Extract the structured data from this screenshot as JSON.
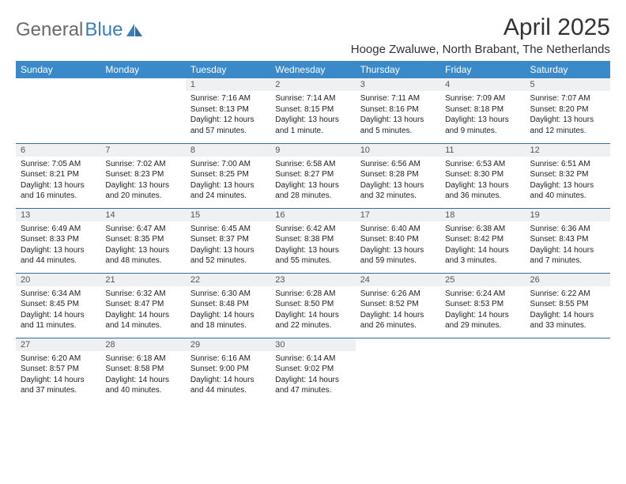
{
  "brand": {
    "part1": "General",
    "part2": "Blue"
  },
  "title": "April 2025",
  "location": "Hooge Zwaluwe, North Brabant, The Netherlands",
  "colors": {
    "header_bg": "#3a8ac9",
    "header_text": "#ffffff",
    "daynum_bg": "#eef0f2",
    "row_divider": "#2f6fa3",
    "brand_gray": "#6a6a6a",
    "brand_blue": "#3a7ebf",
    "text": "#222222",
    "background": "#ffffff"
  },
  "typography": {
    "title_fontsize": 30,
    "location_fontsize": 15,
    "weekday_fontsize": 12,
    "daynum_fontsize": 11,
    "cell_fontsize": 10
  },
  "weekdays": [
    "Sunday",
    "Monday",
    "Tuesday",
    "Wednesday",
    "Thursday",
    "Friday",
    "Saturday"
  ],
  "weeks": [
    [
      null,
      null,
      {
        "n": "1",
        "sunrise": "7:16 AM",
        "sunset": "8:13 PM",
        "daylight": "12 hours and 57 minutes."
      },
      {
        "n": "2",
        "sunrise": "7:14 AM",
        "sunset": "8:15 PM",
        "daylight": "13 hours and 1 minute."
      },
      {
        "n": "3",
        "sunrise": "7:11 AM",
        "sunset": "8:16 PM",
        "daylight": "13 hours and 5 minutes."
      },
      {
        "n": "4",
        "sunrise": "7:09 AM",
        "sunset": "8:18 PM",
        "daylight": "13 hours and 9 minutes."
      },
      {
        "n": "5",
        "sunrise": "7:07 AM",
        "sunset": "8:20 PM",
        "daylight": "13 hours and 12 minutes."
      }
    ],
    [
      {
        "n": "6",
        "sunrise": "7:05 AM",
        "sunset": "8:21 PM",
        "daylight": "13 hours and 16 minutes."
      },
      {
        "n": "7",
        "sunrise": "7:02 AM",
        "sunset": "8:23 PM",
        "daylight": "13 hours and 20 minutes."
      },
      {
        "n": "8",
        "sunrise": "7:00 AM",
        "sunset": "8:25 PM",
        "daylight": "13 hours and 24 minutes."
      },
      {
        "n": "9",
        "sunrise": "6:58 AM",
        "sunset": "8:27 PM",
        "daylight": "13 hours and 28 minutes."
      },
      {
        "n": "10",
        "sunrise": "6:56 AM",
        "sunset": "8:28 PM",
        "daylight": "13 hours and 32 minutes."
      },
      {
        "n": "11",
        "sunrise": "6:53 AM",
        "sunset": "8:30 PM",
        "daylight": "13 hours and 36 minutes."
      },
      {
        "n": "12",
        "sunrise": "6:51 AM",
        "sunset": "8:32 PM",
        "daylight": "13 hours and 40 minutes."
      }
    ],
    [
      {
        "n": "13",
        "sunrise": "6:49 AM",
        "sunset": "8:33 PM",
        "daylight": "13 hours and 44 minutes."
      },
      {
        "n": "14",
        "sunrise": "6:47 AM",
        "sunset": "8:35 PM",
        "daylight": "13 hours and 48 minutes."
      },
      {
        "n": "15",
        "sunrise": "6:45 AM",
        "sunset": "8:37 PM",
        "daylight": "13 hours and 52 minutes."
      },
      {
        "n": "16",
        "sunrise": "6:42 AM",
        "sunset": "8:38 PM",
        "daylight": "13 hours and 55 minutes."
      },
      {
        "n": "17",
        "sunrise": "6:40 AM",
        "sunset": "8:40 PM",
        "daylight": "13 hours and 59 minutes."
      },
      {
        "n": "18",
        "sunrise": "6:38 AM",
        "sunset": "8:42 PM",
        "daylight": "14 hours and 3 minutes."
      },
      {
        "n": "19",
        "sunrise": "6:36 AM",
        "sunset": "8:43 PM",
        "daylight": "14 hours and 7 minutes."
      }
    ],
    [
      {
        "n": "20",
        "sunrise": "6:34 AM",
        "sunset": "8:45 PM",
        "daylight": "14 hours and 11 minutes."
      },
      {
        "n": "21",
        "sunrise": "6:32 AM",
        "sunset": "8:47 PM",
        "daylight": "14 hours and 14 minutes."
      },
      {
        "n": "22",
        "sunrise": "6:30 AM",
        "sunset": "8:48 PM",
        "daylight": "14 hours and 18 minutes."
      },
      {
        "n": "23",
        "sunrise": "6:28 AM",
        "sunset": "8:50 PM",
        "daylight": "14 hours and 22 minutes."
      },
      {
        "n": "24",
        "sunrise": "6:26 AM",
        "sunset": "8:52 PM",
        "daylight": "14 hours and 26 minutes."
      },
      {
        "n": "25",
        "sunrise": "6:24 AM",
        "sunset": "8:53 PM",
        "daylight": "14 hours and 29 minutes."
      },
      {
        "n": "26",
        "sunrise": "6:22 AM",
        "sunset": "8:55 PM",
        "daylight": "14 hours and 33 minutes."
      }
    ],
    [
      {
        "n": "27",
        "sunrise": "6:20 AM",
        "sunset": "8:57 PM",
        "daylight": "14 hours and 37 minutes."
      },
      {
        "n": "28",
        "sunrise": "6:18 AM",
        "sunset": "8:58 PM",
        "daylight": "14 hours and 40 minutes."
      },
      {
        "n": "29",
        "sunrise": "6:16 AM",
        "sunset": "9:00 PM",
        "daylight": "14 hours and 44 minutes."
      },
      {
        "n": "30",
        "sunrise": "6:14 AM",
        "sunset": "9:02 PM",
        "daylight": "14 hours and 47 minutes."
      },
      null,
      null,
      null
    ]
  ],
  "labels": {
    "sunrise": "Sunrise:",
    "sunset": "Sunset:",
    "daylight": "Daylight:"
  }
}
